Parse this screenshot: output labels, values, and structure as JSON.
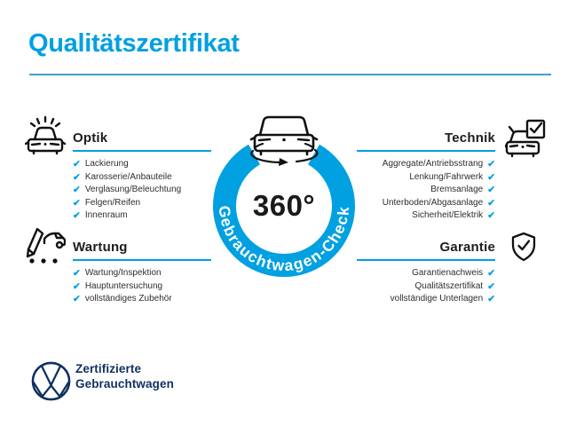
{
  "page": {
    "title": "Qualitätszertifikat"
  },
  "badge": {
    "value": "360°",
    "ring_label": "Gebrauchtwagen-Check",
    "icon": "car-rotation-icon"
  },
  "sections": {
    "optik": {
      "title": "Optik",
      "icon": "car-shine-icon",
      "items": [
        "Lackierung",
        "Karosserie/Anbauteile",
        "Verglasung/Beleuchtung",
        "Felgen/Reifen",
        "Innenraum"
      ]
    },
    "technik": {
      "title": "Technik",
      "icon": "car-checkbox-icon",
      "items": [
        "Aggregate/Antriebsstrang",
        "Lenkung/Fahrwerk",
        "Bremsanlage",
        "Unterboden/Abgasanlage",
        "Sicherheit/Elektrik"
      ]
    },
    "wartung": {
      "title": "Wartung",
      "icon": "service-note-icon",
      "items": [
        "Wartung/Inspektion",
        "Hauptuntersuchung",
        "vollständiges Zubehör"
      ]
    },
    "garantie": {
      "title": "Garantie",
      "icon": "shield-check-icon",
      "items": [
        "Garantienachweis",
        "Qualitätszertifikat",
        "vollständige Unterlagen"
      ]
    }
  },
  "footer": {
    "logo": "vw-logo",
    "line1": "Zertifizierte",
    "line2": "Gebrauchtwagen"
  },
  "check_glyph": "✔",
  "colors": {
    "accent": "#00a0e1",
    "title_rule": "#3aa4c8",
    "navy": "#10305f",
    "heading_text": "#1d1d1b",
    "item_text": "#2e2e2e",
    "icon_stroke": "#111111"
  }
}
